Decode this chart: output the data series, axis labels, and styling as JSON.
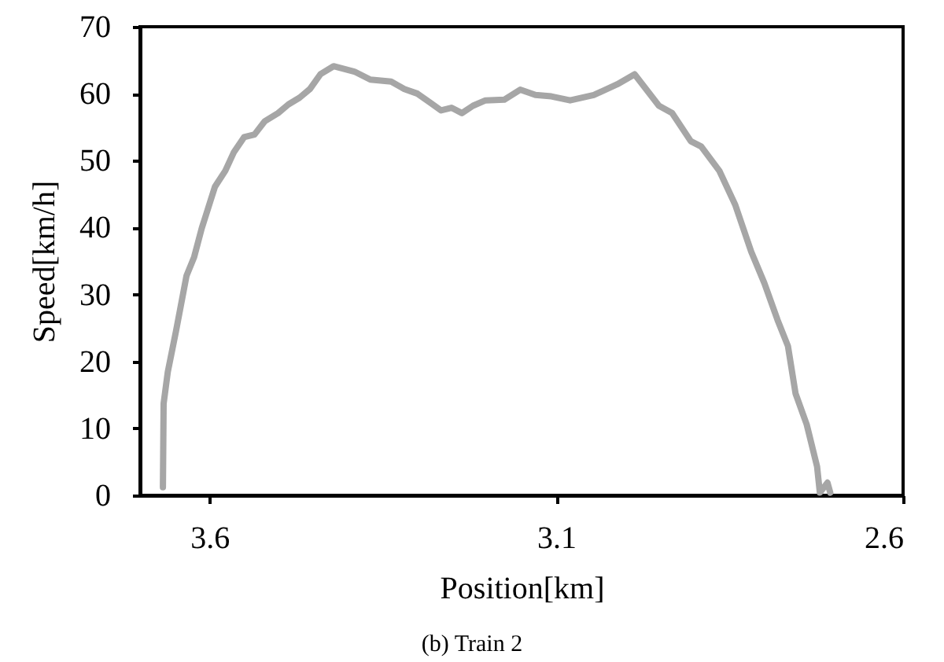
{
  "chart_data": {
    "type": "line",
    "xlabel": "Position[km]",
    "ylabel": "Speed[km/h]",
    "annotations": [
      "(b) Train 2"
    ],
    "x": [
      3.667,
      3.666,
      3.66,
      3.648,
      3.633,
      3.622,
      3.611,
      3.592,
      3.577,
      3.565,
      3.55,
      3.535,
      3.52,
      3.501,
      3.486,
      3.47,
      3.455,
      3.44,
      3.421,
      3.391,
      3.368,
      3.338,
      3.319,
      3.3,
      3.281,
      3.266,
      3.251,
      3.236,
      3.22,
      3.202,
      3.175,
      3.152,
      3.13,
      3.107,
      3.08,
      3.046,
      3.012,
      2.987,
      2.952,
      2.933,
      2.906,
      2.891,
      2.865,
      2.842,
      2.819,
      2.8,
      2.781,
      2.766,
      2.755,
      2.739,
      2.724,
      2.72,
      2.709,
      2.705
    ],
    "series": [
      {
        "color": "#a6a6a6",
        "values": [
          1.2,
          13.7,
          18.4,
          24.6,
          32.8,
          35.6,
          39.9,
          46.1,
          48.5,
          51.2,
          53.5,
          53.9,
          55.9,
          57.1,
          58.4,
          59.4,
          60.7,
          62.9,
          64.1,
          63.3,
          62.1,
          61.8,
          60.7,
          60.0,
          58.6,
          57.5,
          57.9,
          57.1,
          58.2,
          59.0,
          59.1,
          60.6,
          59.8,
          59.6,
          59.0,
          59.8,
          61.4,
          62.9,
          58.2,
          57.1,
          52.9,
          52.1,
          48.5,
          43.4,
          36.4,
          31.7,
          26.2,
          22.3,
          15.2,
          10.6,
          4.3,
          0.4,
          1.9,
          0.4
        ]
      }
    ],
    "xlim": [
      3.7,
      2.6
    ],
    "xticks": [
      3.6,
      3.1,
      2.6
    ],
    "ylim": [
      0,
      70
    ],
    "yticks": [
      0,
      10,
      20,
      30,
      40,
      50,
      60,
      70
    ],
    "grid": false,
    "marker": "none",
    "line_style": "solid"
  }
}
